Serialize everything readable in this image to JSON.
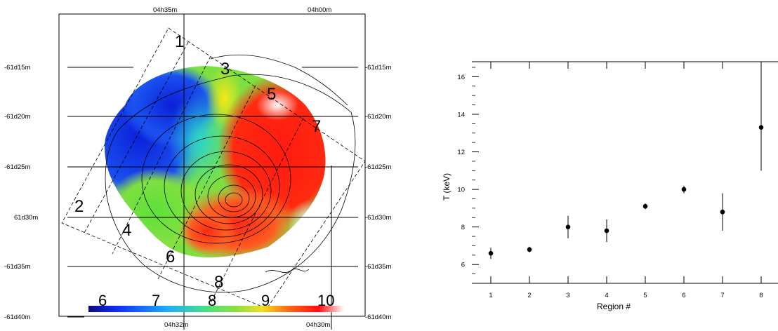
{
  "chart_data": [
    {
      "type": "heatmap",
      "title": "",
      "top_ticks": [
        "04h35m",
        "04h00m"
      ],
      "bottom_ticks": [
        "04h32m",
        "04h30m"
      ],
      "left_ticks": [
        "-61d15m",
        "-61d20m",
        "-61d25m",
        "61d30m",
        "-61d35m",
        "-61d40m"
      ],
      "right_ticks": [
        "-61d15m",
        "-61d20m",
        "-61d25m",
        "-61d30m",
        "-61d35m",
        "-61d40m"
      ],
      "regions": [
        "1",
        "2",
        "3",
        "4",
        "5",
        "6",
        "7",
        "8"
      ],
      "colorbar": {
        "labels": [
          "6",
          "7",
          "8",
          "9",
          "10"
        ],
        "min": 6,
        "max": 10
      }
    },
    {
      "type": "scatter",
      "xlabel": "Region #",
      "ylabel": "T (keV)",
      "xlim": [
        0.5,
        8.5
      ],
      "ylim": [
        5,
        16.8
      ],
      "x_ticks": [
        "1",
        "2",
        "3",
        "4",
        "5",
        "6",
        "7",
        "8"
      ],
      "y_ticks": [
        "6",
        "8",
        "10",
        "12",
        "14",
        "16"
      ],
      "x": [
        1,
        2,
        3,
        4,
        5,
        6,
        7,
        8
      ],
      "y": [
        6.6,
        6.8,
        8.0,
        7.8,
        9.1,
        10.0,
        8.8,
        13.3
      ],
      "yerr_low": [
        0.3,
        0.15,
        0.6,
        0.6,
        0.15,
        0.2,
        1.0,
        2.3
      ],
      "yerr_high": [
        0.3,
        0.15,
        0.6,
        0.6,
        0.15,
        0.2,
        1.0,
        3.4
      ]
    }
  ]
}
